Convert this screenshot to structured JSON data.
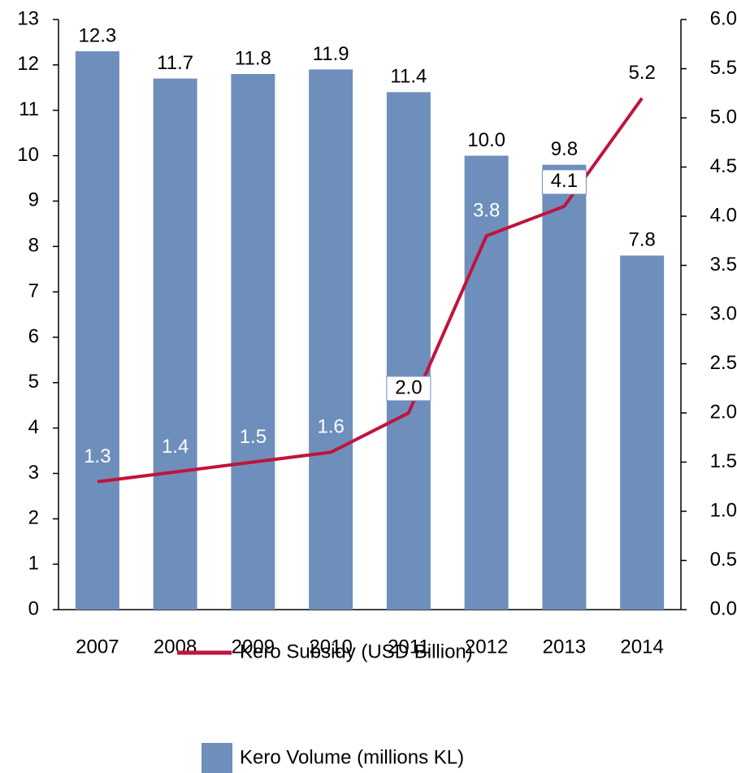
{
  "chart_data": {
    "type": "bar-line",
    "categories": [
      "2007",
      "2008",
      "2009",
      "2010",
      "2011",
      "2012",
      "2013",
      "2014"
    ],
    "series": [
      {
        "name": "Kero Volume (millions KL)",
        "type": "bar",
        "color": "#6e8fbc",
        "axis": "y",
        "values": [
          12.3,
          11.7,
          11.8,
          11.9,
          11.4,
          10.0,
          9.8,
          7.8
        ],
        "value_labels": [
          "12.3",
          "11.7",
          "11.8",
          "11.9",
          "11.4",
          "10.0",
          "9.8",
          "7.8"
        ]
      },
      {
        "name": "Kero Subsidy (USD Billion)",
        "type": "line",
        "color": "#c0143c",
        "axis": "y2",
        "values": [
          1.3,
          1.4,
          1.5,
          1.6,
          2.0,
          3.8,
          4.1,
          5.2
        ],
        "value_labels": [
          "1.3",
          "1.4",
          "1.5",
          "1.6",
          "2.0",
          "3.8",
          "4.1",
          "5.2"
        ]
      }
    ],
    "ylim": [
      0,
      13
    ],
    "yticks": [
      0,
      1,
      2,
      3,
      4,
      5,
      6,
      7,
      8,
      9,
      10,
      11,
      12,
      13
    ],
    "y2lim": [
      0,
      6
    ],
    "y2ticks": [
      {
        "value": 0,
        "label": "0.0"
      },
      0.5,
      {
        "value": 1,
        "label": "1.0"
      },
      1.5,
      {
        "value": 2,
        "label": "2.0"
      },
      2.5,
      {
        "value": 3,
        "label": "3.0"
      },
      3.5,
      {
        "value": 4,
        "label": "4.0"
      },
      4.5,
      {
        "value": 5,
        "label": "5.0"
      },
      5.5,
      {
        "value": 6,
        "label": "6.0"
      }
    ]
  }
}
